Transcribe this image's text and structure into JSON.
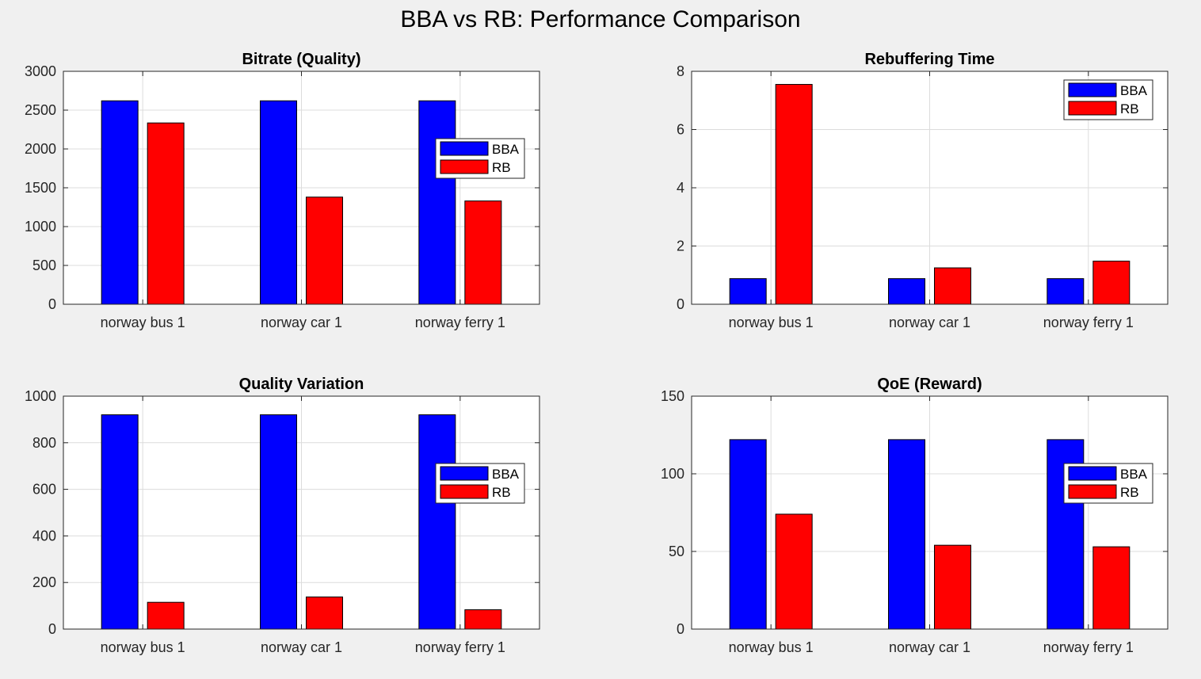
{
  "figure": {
    "title": "BBA vs RB: Performance Comparison"
  },
  "colors": {
    "BBA": "#0000ff",
    "RB": "#ff0000",
    "grid": "#dcdcdc",
    "axis": "#262626"
  },
  "chart_data": [
    {
      "type": "bar",
      "title": "Bitrate (Quality)",
      "categories": [
        "norway bus 1",
        "norway car 1",
        "norway ferry 1"
      ],
      "series": [
        {
          "name": "BBA",
          "values": [
            2620,
            2620,
            2620
          ]
        },
        {
          "name": "RB",
          "values": [
            2335,
            1380,
            1330
          ]
        }
      ],
      "ylim": [
        0,
        3000
      ],
      "yticks": [
        0,
        500,
        1000,
        1500,
        2000,
        2500,
        3000
      ],
      "grid": true,
      "legend": "right"
    },
    {
      "type": "bar",
      "title": "Rebuffering Time",
      "categories": [
        "norway bus 1",
        "norway car 1",
        "norway ferry 1"
      ],
      "series": [
        {
          "name": "BBA",
          "values": [
            0.88,
            0.88,
            0.88
          ]
        },
        {
          "name": "RB",
          "values": [
            7.55,
            1.25,
            1.48
          ]
        }
      ],
      "ylim": [
        0,
        8
      ],
      "yticks": [
        0,
        2,
        4,
        6,
        8
      ],
      "grid": true,
      "legend": "top-right"
    },
    {
      "type": "bar",
      "title": "Quality Variation",
      "categories": [
        "norway bus 1",
        "norway car 1",
        "norway ferry 1"
      ],
      "series": [
        {
          "name": "BBA",
          "values": [
            920,
            920,
            920
          ]
        },
        {
          "name": "RB",
          "values": [
            115,
            138,
            83
          ]
        }
      ],
      "ylim": [
        0,
        1000
      ],
      "yticks": [
        0,
        200,
        400,
        600,
        800,
        1000
      ],
      "grid": true,
      "legend": "right"
    },
    {
      "type": "bar",
      "title": "QoE (Reward)",
      "categories": [
        "norway bus 1",
        "norway car 1",
        "norway ferry 1"
      ],
      "series": [
        {
          "name": "BBA",
          "values": [
            122,
            122,
            122
          ]
        },
        {
          "name": "RB",
          "values": [
            74,
            54,
            53
          ]
        }
      ],
      "ylim": [
        0,
        150
      ],
      "yticks": [
        0,
        50,
        100,
        150
      ],
      "grid": true,
      "legend": "right"
    }
  ]
}
